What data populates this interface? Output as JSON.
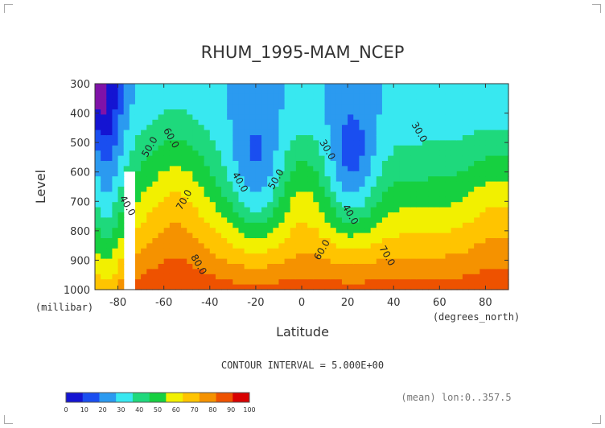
{
  "chart_data": {
    "type": "heatmap",
    "title": "RHUM_1995-MAM_NCEP",
    "xlabel": "Latitude",
    "xunit": "(degrees_north)",
    "ylabel": "Level",
    "yunit": "(millibar)",
    "x_ticks": [
      -80,
      -60,
      -40,
      -20,
      0,
      20,
      40,
      60,
      80
    ],
    "y_ticks": [
      300,
      400,
      500,
      600,
      700,
      800,
      900,
      1000
    ],
    "xlim": [
      -90,
      90
    ],
    "ylim": [
      1000,
      300
    ],
    "contour_labels": [
      {
        "text": "50.0",
        "lat": -65,
        "lev": 520
      },
      {
        "text": "60.0",
        "lat": -58,
        "lev": 490
      },
      {
        "text": "40.0",
        "lat": -28,
        "lev": 640
      },
      {
        "text": "70.0",
        "lat": -50,
        "lev": 700
      },
      {
        "text": "40.0",
        "lat": -77,
        "lev": 720
      },
      {
        "text": "80.0",
        "lat": -46,
        "lev": 920
      },
      {
        "text": "50.0",
        "lat": -10,
        "lev": 630
      },
      {
        "text": "30.0",
        "lat": 10,
        "lev": 530
      },
      {
        "text": "40.0",
        "lat": 20,
        "lev": 750
      },
      {
        "text": "60.0",
        "lat": 10,
        "lev": 870
      },
      {
        "text": "70.0",
        "lat": 36,
        "lev": 890
      },
      {
        "text": "30.0",
        "lat": 50,
        "lev": 470
      }
    ],
    "levels": [
      0,
      10,
      20,
      30,
      40,
      50,
      60,
      70,
      80,
      90,
      100
    ],
    "colors": [
      "#7f12a8",
      "#1414d2",
      "#1a4ef0",
      "#2b9af0",
      "#38e8f0",
      "#1ed97c",
      "#16d040",
      "#f2f000",
      "#ffc400",
      "#f59200",
      "#ee5200",
      "#d80000"
    ]
  },
  "labels": {
    "contour_interval": "CONTOUR INTERVAL = 5.000E+00",
    "mean_note": "(mean) lon:0..357.5",
    "colorbar_ticks": [
      "0",
      "10",
      "20",
      "30",
      "40",
      "50",
      "60",
      "70",
      "80",
      "90",
      "100"
    ]
  }
}
